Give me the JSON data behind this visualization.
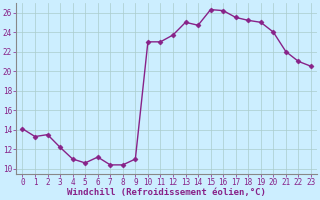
{
  "x": [
    0,
    1,
    2,
    3,
    4,
    5,
    6,
    7,
    8,
    9,
    10,
    11,
    12,
    13,
    14,
    15,
    16,
    17,
    18,
    19,
    20,
    21,
    22,
    23
  ],
  "y": [
    14.1,
    13.3,
    13.5,
    12.2,
    11.0,
    10.6,
    11.2,
    10.4,
    10.4,
    11.0,
    23.0,
    23.0,
    23.7,
    25.0,
    24.7,
    26.3,
    26.2,
    25.5,
    25.2,
    25.0,
    24.0,
    22.0,
    21.0,
    20.5
  ],
  "line_color": "#882288",
  "marker": "D",
  "marker_size": 2.5,
  "bg_color": "#cceeff",
  "grid_color": "#aacccc",
  "xlabel": "Windchill (Refroidissement éolien,°C)",
  "xlabel_color": "#882288",
  "ylim": [
    9.5,
    27
  ],
  "yticks": [
    10,
    12,
    14,
    16,
    18,
    20,
    22,
    24,
    26
  ],
  "xticks": [
    0,
    1,
    2,
    3,
    4,
    5,
    6,
    7,
    8,
    9,
    10,
    11,
    12,
    13,
    14,
    15,
    16,
    17,
    18,
    19,
    20,
    21,
    22,
    23
  ],
  "tick_fontsize": 5.5,
  "xlabel_fontsize": 6.5,
  "linewidth": 1.0
}
